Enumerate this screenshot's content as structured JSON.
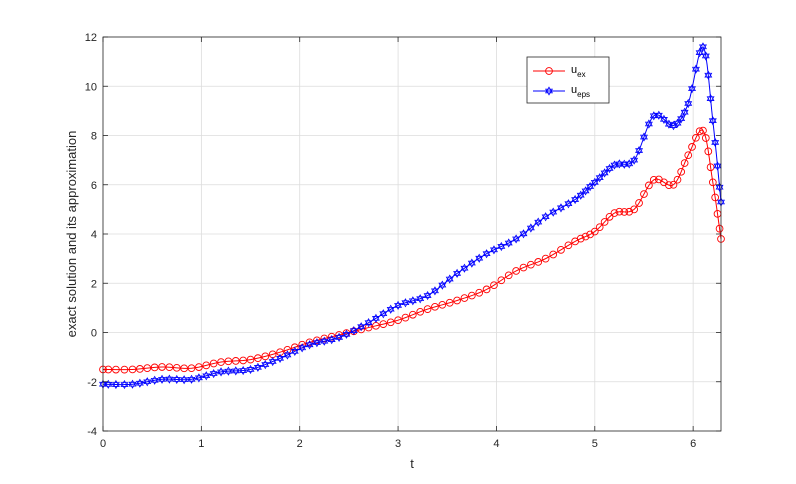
{
  "chart_data": {
    "type": "line",
    "title": "",
    "xlabel": "t",
    "ylabel": "exact solution and its approximation",
    "xlim": [
      0,
      6.2832
    ],
    "ylim": [
      -4,
      12
    ],
    "xticks": [
      "0",
      "1",
      "2",
      "3",
      "4",
      "5",
      "6"
    ],
    "yticks": [
      "-4",
      "-2",
      "0",
      "2",
      "4",
      "6",
      "8",
      "10",
      "12"
    ],
    "grid": true,
    "legend_position": "top-right",
    "series": [
      {
        "name_main": "u",
        "name_sub": "ex",
        "color": "#ff0000",
        "marker": "circle",
        "x": [
          0,
          0.3,
          0.6,
          0.9,
          1.2,
          1.5,
          1.8,
          2.1,
          2.4,
          2.7,
          3.0,
          3.3,
          3.6,
          3.9,
          4.2,
          4.5,
          4.8,
          5.0,
          5.2,
          5.4,
          5.6,
          5.8,
          5.95,
          6.1,
          6.2,
          6.2832
        ],
        "y": [
          -1.5,
          -1.5,
          -1.4,
          -1.45,
          -1.2,
          -1.1,
          -0.8,
          -0.4,
          -0.1,
          0.2,
          0.5,
          0.95,
          1.3,
          1.75,
          2.5,
          3.0,
          3.7,
          4.1,
          4.85,
          5.0,
          6.2,
          6.0,
          7.2,
          8.2,
          6.1,
          3.8
        ]
      },
      {
        "name_main": "u",
        "name_sub": "eps",
        "color": "#0000ff",
        "marker": "hexagram",
        "x": [
          0,
          0.3,
          0.6,
          0.9,
          1.2,
          1.5,
          1.8,
          2.1,
          2.4,
          2.7,
          3.0,
          3.3,
          3.6,
          3.9,
          4.2,
          4.5,
          4.8,
          5.0,
          5.2,
          5.4,
          5.6,
          5.8,
          5.95,
          6.1,
          6.2,
          6.2832
        ],
        "y": [
          -2.1,
          -2.1,
          -1.9,
          -1.9,
          -1.6,
          -1.5,
          -1.05,
          -0.5,
          -0.2,
          0.4,
          1.1,
          1.5,
          2.4,
          3.2,
          3.8,
          4.7,
          5.4,
          6.1,
          6.8,
          7.0,
          8.8,
          8.4,
          9.3,
          11.6,
          8.6,
          5.3
        ]
      }
    ]
  }
}
